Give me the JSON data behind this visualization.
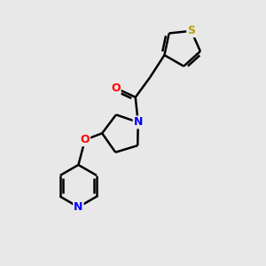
{
  "background_color": "#e8e8e8",
  "bond_color": "#000000",
  "atom_colors": {
    "S": "#b8a000",
    "N": "#0000ff",
    "O": "#ff0000",
    "C": "#000000"
  },
  "figsize": [
    3.0,
    3.0
  ],
  "dpi": 100,
  "xlim": [
    0,
    10
  ],
  "ylim": [
    0,
    10
  ]
}
